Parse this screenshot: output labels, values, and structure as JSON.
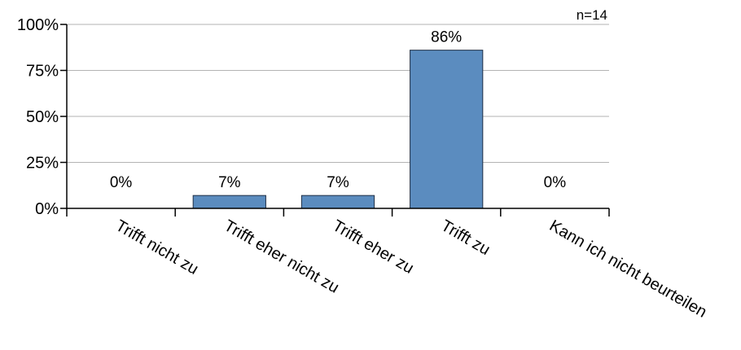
{
  "chart_data": {
    "type": "bar",
    "categories": [
      "Trifft nicht zu",
      "Trifft eher nicht zu",
      "Trifft eher zu",
      "Trifft zu",
      "Kann ich nicht beurteilen"
    ],
    "values": [
      0,
      7,
      7,
      86,
      0
    ],
    "data_labels": [
      "0%",
      "7%",
      "7%",
      "86%",
      "0%"
    ],
    "ylim": [
      0,
      100
    ],
    "yticks": [
      0,
      25,
      50,
      75,
      100
    ],
    "ytick_labels": [
      "0%",
      "25%",
      "50%",
      "75%",
      "100%"
    ],
    "annotation": "n=14",
    "grid": true,
    "bar_color": "#5b8cbf",
    "bar_edge_color": "#1f2f45",
    "grid_color": "#b3b3b3"
  }
}
